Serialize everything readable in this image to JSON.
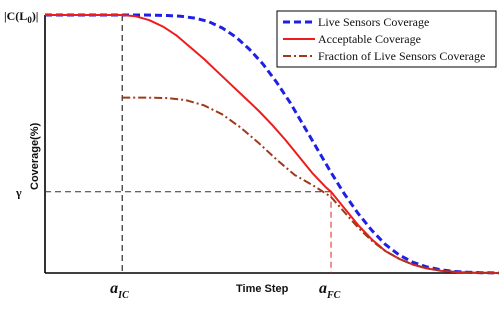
{
  "chart_data": {
    "type": "line",
    "title": "",
    "xlabel": "Time Step",
    "ylabel": "Coverage(%)",
    "xlim": [
      0,
      100
    ],
    "ylim": [
      0,
      100
    ],
    "grid": false,
    "legend_position": "top-right",
    "y_tick_labels": {
      "top": {
        "main": "|C(L",
        "sub": "0",
        "tail": ")|"
      },
      "gamma": "γ"
    },
    "x_markers": [
      {
        "name": "aIC",
        "main": "a",
        "sub": "IC",
        "x": 17
      },
      {
        "name": "aFC",
        "main": "a",
        "sub": "FC",
        "x": 63
      }
    ],
    "gamma_level": 31.5,
    "series": [
      {
        "name": "Live Sensors Coverage",
        "color": "#1f1fe6",
        "style": "dashed",
        "x": [
          0,
          10,
          17,
          22,
          27,
          30,
          33,
          36,
          39,
          42,
          45,
          48,
          51,
          54,
          57,
          60,
          63,
          66,
          69,
          72,
          75,
          78,
          81,
          84,
          87,
          90,
          93,
          96,
          100
        ],
        "y": [
          100,
          100,
          100,
          100,
          99.8,
          99.5,
          98.8,
          97.5,
          95,
          91.5,
          86.8,
          81,
          74,
          66,
          57,
          48,
          39,
          30.5,
          23,
          16.5,
          11,
          7,
          4.2,
          2.4,
          1.3,
          0.6,
          0.3,
          0.1,
          0
        ]
      },
      {
        "name": "Acceptable Coverage",
        "color": "#ee1c1c",
        "style": "solid",
        "x": [
          0,
          10,
          17,
          20,
          23,
          26,
          29,
          32,
          35,
          38,
          41,
          44,
          47,
          50,
          53,
          56,
          59,
          62,
          63,
          66,
          69,
          72,
          75,
          78,
          81,
          84,
          87,
          90,
          95,
          100
        ],
        "y": [
          100,
          100,
          100,
          99.5,
          98,
          95.5,
          92,
          87.5,
          83,
          78,
          73,
          68,
          63,
          57.5,
          51.5,
          45,
          38.5,
          33,
          31.5,
          25,
          18.5,
          13,
          8.5,
          5.5,
          3.3,
          1.8,
          0.9,
          0.4,
          0.1,
          0
        ]
      },
      {
        "name": "Fraction of Live Sensors Coverage",
        "color": "#a0381a",
        "style": "dashdot",
        "x": [
          17,
          22,
          27,
          31,
          35,
          39,
          43,
          47,
          51,
          55,
          59,
          63,
          66,
          69,
          72,
          75,
          78,
          81,
          84,
          87,
          90,
          95,
          100
        ],
        "y": [
          68,
          68,
          67.8,
          67,
          65,
          61.5,
          56.5,
          50.5,
          44,
          38,
          34,
          29.5,
          23.5,
          17.5,
          12.5,
          8.5,
          5.5,
          3.3,
          1.9,
          1,
          0.5,
          0.1,
          0
        ]
      }
    ]
  }
}
